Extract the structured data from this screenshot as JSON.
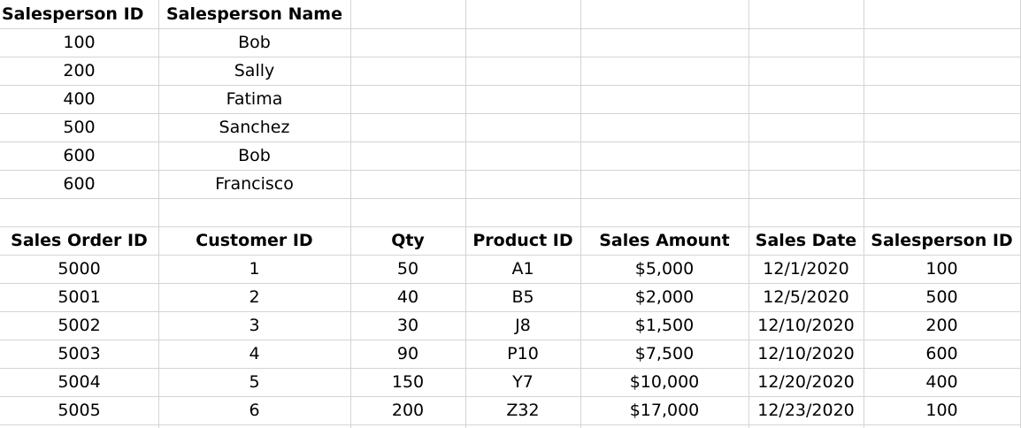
{
  "salesperson_table": {
    "headers": [
      "Salesperson ID",
      "Salesperson Name"
    ],
    "rows": [
      [
        "100",
        "Bob"
      ],
      [
        "200",
        "Sally"
      ],
      [
        "400",
        "Fatima"
      ],
      [
        "500",
        "Sanchez"
      ],
      [
        "600",
        "Bob"
      ],
      [
        "600",
        "Francisco"
      ]
    ]
  },
  "sales_table": {
    "headers": [
      "Sales Order ID",
      "Customer ID",
      "Qty",
      "Product ID",
      "Sales Amount",
      "Sales Date",
      "Salesperson ID"
    ],
    "rows": [
      [
        "5000",
        "1",
        "50",
        "A1",
        "$5,000",
        "12/1/2020",
        "100"
      ],
      [
        "5001",
        "2",
        "40",
        "B5",
        "$2,000",
        "12/5/2020",
        "500"
      ],
      [
        "5002",
        "3",
        "30",
        "J8",
        "$1,500",
        "12/10/2020",
        "200"
      ],
      [
        "5003",
        "4",
        "90",
        "P10",
        "$7,500",
        "12/10/2020",
        "600"
      ],
      [
        "5004",
        "5",
        "150",
        "Y7",
        "$10,000",
        "12/20/2020",
        "400"
      ],
      [
        "5005",
        "6",
        "200",
        "Z32",
        "$17,000",
        "12/23/2020",
        "100"
      ]
    ]
  }
}
